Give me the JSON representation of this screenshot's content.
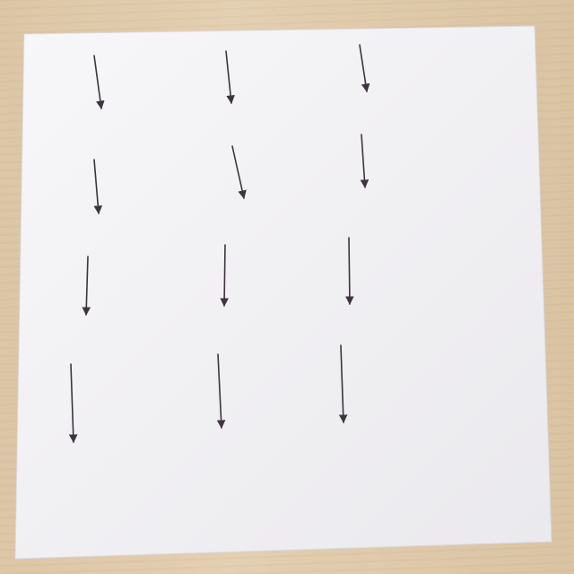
{
  "scene": {
    "subject": "sheet-of-paper-with-hand-drawn-arrows",
    "paper_color": "#f3f2f5",
    "ink_color": "#3d3440",
    "tabletop_color": "#dfc9a9"
  }
}
